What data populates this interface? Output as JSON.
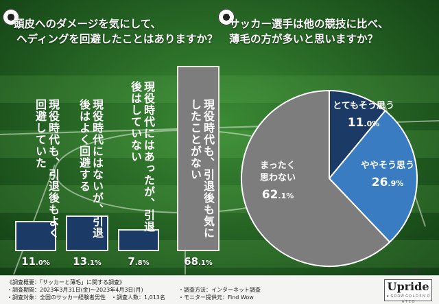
{
  "title_left": [
    "頭皮へのダメージを気にして、",
    "ヘディングを回避したことはありますか？"
  ],
  "title_right": [
    "サッカー選手は他の競技に比べ、",
    "薄毛の方が多いと思いますか？"
  ],
  "colors": {
    "dark_blue": "#1b3a66",
    "mid_blue": "#3a7cc2",
    "gray": "#7d7d7d",
    "field_dark": "#1e5e1f",
    "field_light": "#2e7a2c"
  },
  "chart_data": [
    {
      "type": "bar",
      "categories": [
        "現役時代も、引退後もよく回避していた",
        "現役時代にはないが、引退後はよく回避する",
        "現役時代にはあったが、引退後はしていない",
        "現役時代も、引退後も気にしたことがない"
      ],
      "values": [
        11.0,
        13.1,
        7.8,
        68.1
      ],
      "labels": [
        [
          "11",
          ".0%"
        ],
        [
          "13",
          ".1%"
        ],
        [
          "7",
          ".8%"
        ],
        [
          "68",
          ".1%"
        ]
      ],
      "unit": "%"
    },
    {
      "type": "pie",
      "categories": [
        "とてもそう思う",
        "ややそう思う",
        "まったく思わない"
      ],
      "values": [
        11.0,
        26.9,
        62.1
      ],
      "labels": [
        [
          "11",
          ".0%"
        ],
        [
          "26",
          ".9%"
        ],
        [
          "62",
          ".1%"
        ]
      ],
      "unit": "%",
      "note": "(n=1,013名)"
    }
  ],
  "footer": {
    "line1_left": "《調査概要：「サッカーと薄毛」に関する調査》",
    "line2_left": "・調査期間：2023年3月31日(金)〜2023年4月3日(月)",
    "line3_left": "・調査対象：全国のサッカー経験者男性　・調査人数：1,013名",
    "line2_right": "・調査方法：インターネット調査",
    "line3_right": "・モニター提供元：Find Wow",
    "logo_main": "Upride",
    "logo_sub": "★ ＧＲＯＷ ＧＯＬＤＥＮ ＲＡＴＩＯ"
  }
}
